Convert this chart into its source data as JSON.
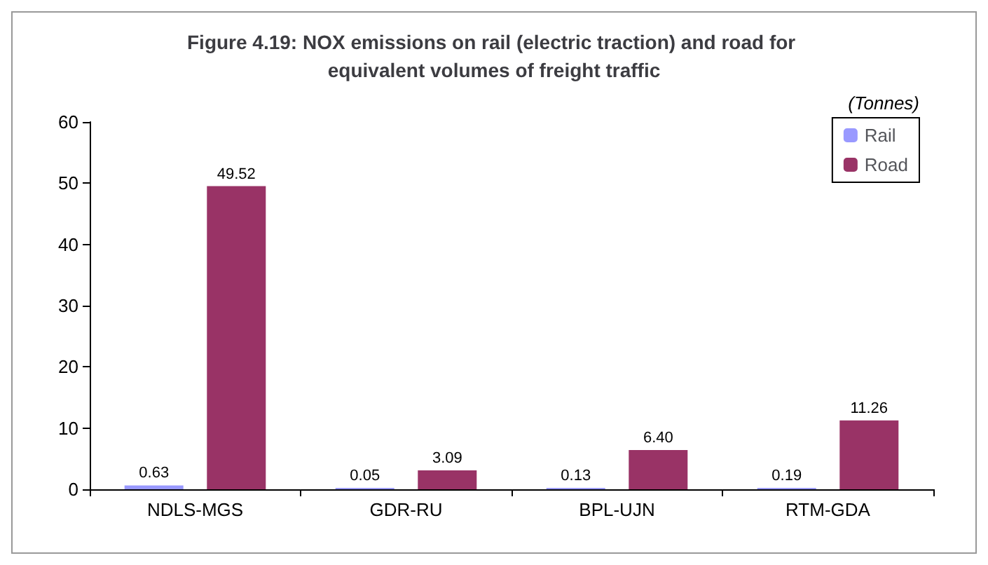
{
  "chart_data": {
    "type": "bar",
    "title": "Figure 4.19: NOX emissions on rail (electric traction) and road for equivalent volumes of freight traffic",
    "categories": [
      "NDLS-MGS",
      "GDR-RU",
      "BPL-UJN",
      "RTM-GDA"
    ],
    "series": [
      {
        "name": "Rail",
        "color": "#9999ff",
        "values": [
          0.63,
          0.05,
          0.13,
          0.19
        ],
        "value_labels": [
          "0.63",
          "0.05",
          "0.13",
          "0.19"
        ]
      },
      {
        "name": "Road",
        "color": "#993366",
        "values": [
          49.52,
          3.09,
          6.4,
          11.26
        ],
        "value_labels": [
          "49.52",
          "3.09",
          "6.40",
          "11.26"
        ]
      }
    ],
    "annotations": [
      "(Tonnes)"
    ],
    "ylim": [
      0,
      60
    ],
    "yticks": [
      0,
      10,
      20,
      30,
      40,
      50,
      60
    ],
    "grid": false,
    "legend": "top right"
  }
}
